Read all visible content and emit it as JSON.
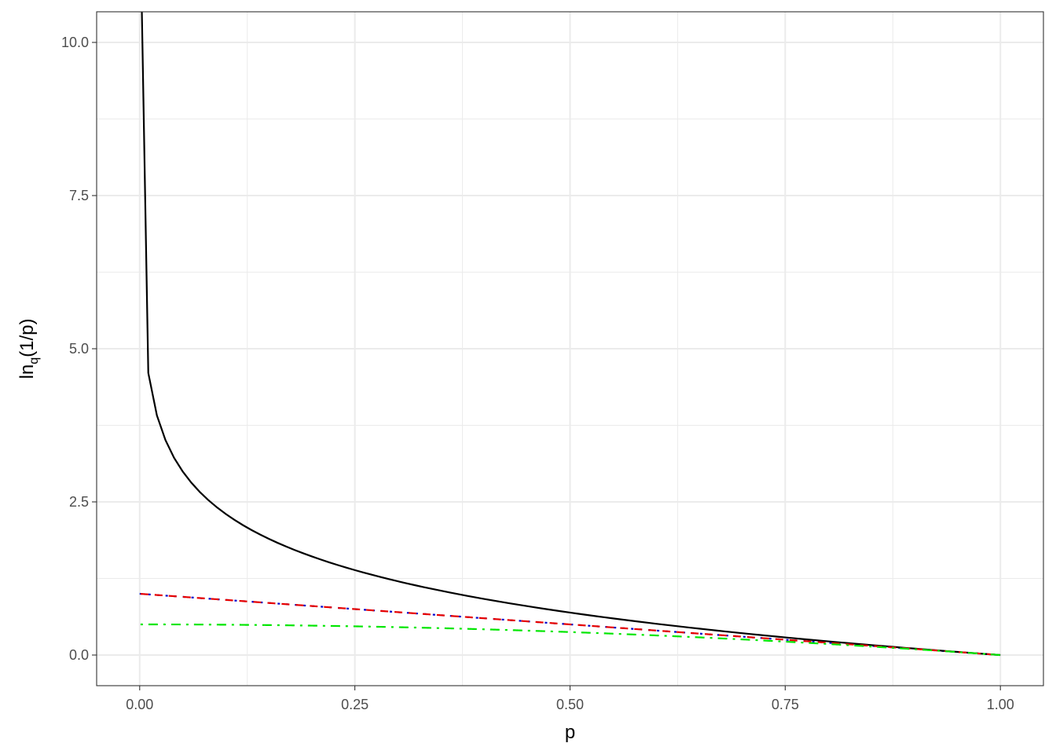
{
  "chart_data": {
    "type": "line",
    "title": "",
    "xlabel": "p",
    "ylabel": {
      "base": "ln",
      "subscript": "q",
      "rest": "(1/p)"
    },
    "xlim": [
      -0.05,
      1.05
    ],
    "ylim": [
      -0.5,
      10.5
    ],
    "x_ticks": [
      0,
      0.25,
      0.5,
      0.75,
      1
    ],
    "x_tick_labels": [
      "0.00",
      "0.25",
      "0.50",
      "0.75",
      "1.00"
    ],
    "y_ticks": [
      0,
      2.5,
      5,
      7.5,
      10
    ],
    "y_tick_labels": [
      "0.0",
      "2.5",
      "5.0",
      "7.5",
      "10.0"
    ],
    "grid": true,
    "legend": "none",
    "series": [
      {
        "q": 0,
        "color": "#0000cc",
        "dash": "dotted"
      },
      {
        "q": 1,
        "color": "#000000",
        "dash": "solid"
      },
      {
        "q": 2,
        "color": "#e60000",
        "dash": "dashed"
      },
      {
        "q": 3,
        "color": "#00e600",
        "dash": "dotdash"
      }
    ]
  }
}
